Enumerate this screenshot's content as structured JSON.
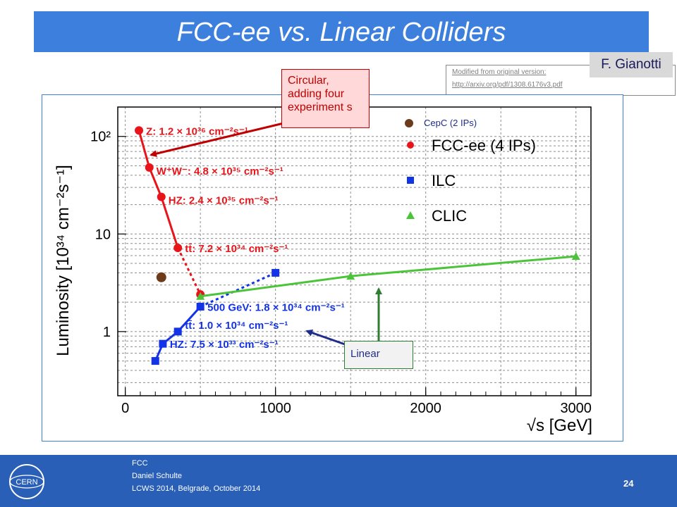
{
  "slide": {
    "title": "FCC-ee vs. Linear Colliders",
    "author_tag": "F. Gianotti",
    "source_line1": "Modified from original version:",
    "source_line2": "http://arxiv.org/pdf/1308.6176v3.pdf",
    "callout_circular": "Circular, adding four experiment s",
    "callout_linear": "Linear",
    "page_number": "24"
  },
  "footer": {
    "line1": "FCC",
    "line2": "Daniel Schulte",
    "line3": "LCWS 2014, Belgrade, October 2014",
    "logo_text": "CERN"
  },
  "colors": {
    "title_bar": "#3c7fdc",
    "footer": "#2a5fb8",
    "fccee": "#e8141a",
    "ilc": "#1233e6",
    "clic": "#4cc43a",
    "cepc": "#6b3b1a"
  },
  "chart_data": {
    "type": "line",
    "title": "",
    "xlabel": "√s [GeV]",
    "ylabel": "Luminosity [10³⁴ cm⁻²s⁻¹]",
    "x_scale": "linear",
    "y_scale": "log",
    "xlim": [
      -50,
      3100
    ],
    "ylim": [
      0.22,
      200
    ],
    "x_ticks": [
      "0",
      "1000",
      "2000",
      "3000"
    ],
    "y_ticks": [
      "1",
      "10",
      "10²"
    ],
    "grid": true,
    "legend_position": "top-right",
    "legend": [
      "CepC (2 IPs)",
      "FCC-ee (4 IPs)",
      "ILC",
      "CLIC"
    ],
    "series": [
      {
        "name": "FCC-ee (4 IPs)",
        "marker": "circle",
        "x": [
          91,
          160,
          240,
          350,
          500
        ],
        "y": [
          115,
          48,
          24,
          7.2,
          2.4
        ],
        "line_style": [
          "solid",
          "solid",
          "solid",
          "dashed"
        ]
      },
      {
        "name": "ILC",
        "marker": "square",
        "x": [
          200,
          250,
          350,
          500,
          1000
        ],
        "y": [
          0.5,
          0.75,
          1.0,
          1.8,
          4.0
        ],
        "line_style": [
          "solid",
          "solid",
          "solid",
          "dashed"
        ]
      },
      {
        "name": "CLIC",
        "marker": "triangle",
        "x": [
          500,
          1500,
          3000
        ],
        "y": [
          2.3,
          3.7,
          5.9
        ],
        "line_style": [
          "solid",
          "solid"
        ]
      },
      {
        "name": "CepC (2 IPs)",
        "marker": "circle",
        "x": [
          240
        ],
        "y": [
          3.6
        ],
        "line_style": []
      }
    ],
    "annotations": [
      {
        "text": "Z: 1.2 × 10³⁶ cm⁻²s⁻¹",
        "series": "FCC-ee (4 IPs)",
        "x": 91,
        "y": 115
      },
      {
        "text": "W⁺W⁻: 4.8 × 10³⁵ cm⁻²s⁻¹",
        "series": "FCC-ee (4 IPs)",
        "x": 160,
        "y": 48
      },
      {
        "text": "HZ: 2.4 × 10³⁵ cm⁻²s⁻¹",
        "series": "FCC-ee (4 IPs)",
        "x": 240,
        "y": 24
      },
      {
        "text": "tt̄: 7.2 × 10³⁴ cm⁻²s⁻¹",
        "series": "FCC-ee (4 IPs)",
        "x": 350,
        "y": 7.2
      },
      {
        "text": "500 GeV: 1.8 × 10³⁴ cm⁻²s⁻¹",
        "series": "ILC",
        "x": 500,
        "y": 1.8
      },
      {
        "text": "tt̄: 1.0 × 10³⁴ cm⁻²s⁻¹",
        "series": "ILC",
        "x": 350,
        "y": 1.0
      },
      {
        "text": "HZ: 7.5 × 10³³ cm⁻²s⁻¹",
        "series": "ILC",
        "x": 250,
        "y": 0.75
      }
    ]
  }
}
